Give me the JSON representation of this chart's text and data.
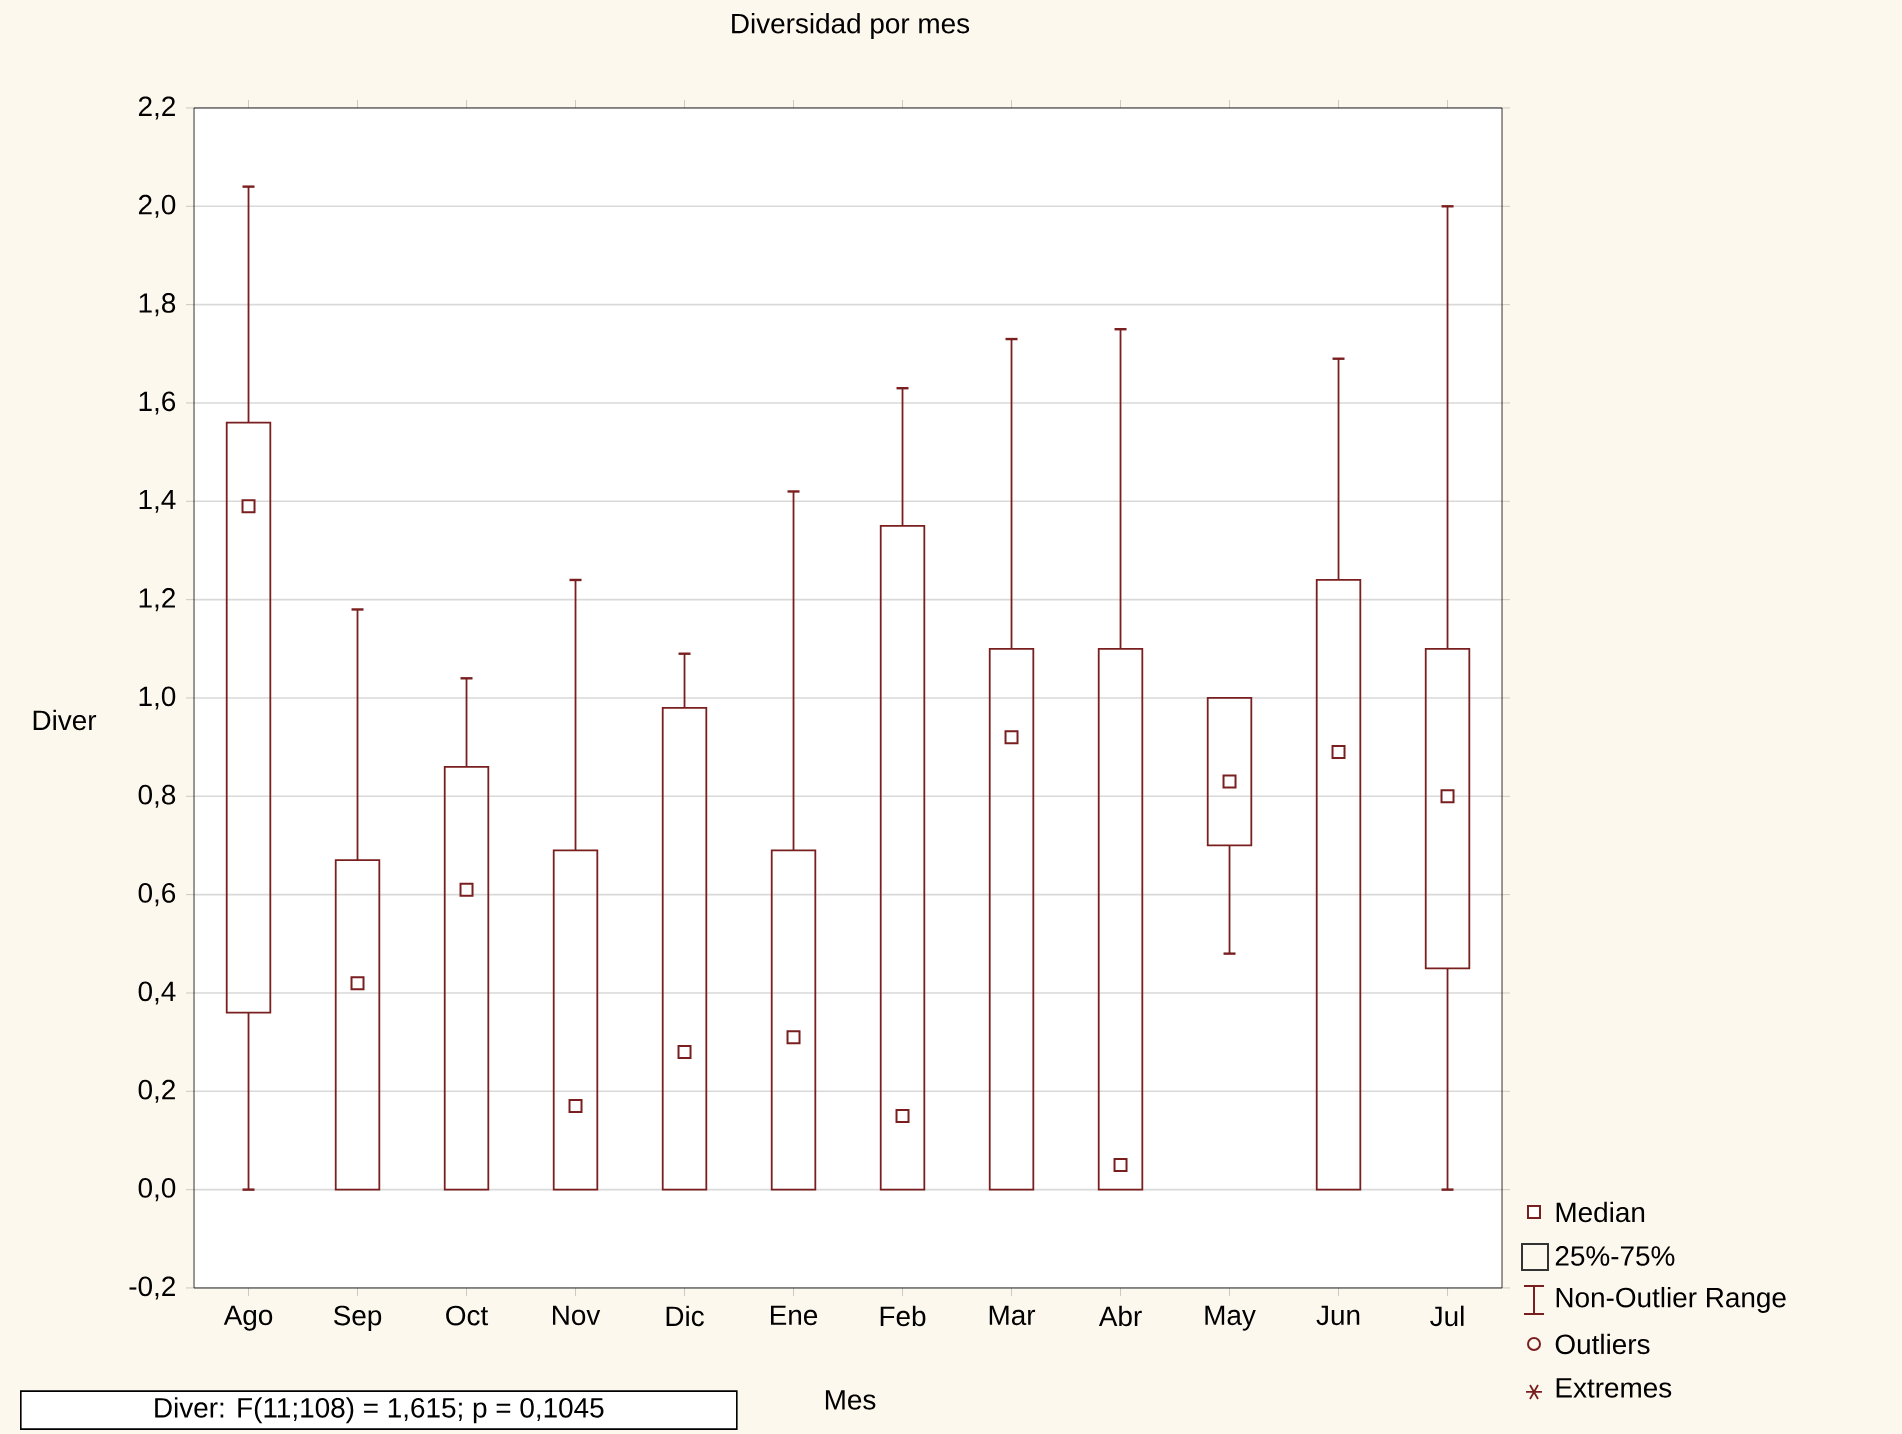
{
  "chart_data": {
    "type": "box",
    "title": "Diversidad por mes",
    "xlabel": "Mes",
    "ylabel": "Diver",
    "categories": [
      "Ago",
      "Sep",
      "Oct",
      "Nov",
      "Dic",
      "Ene",
      "Feb",
      "Mar",
      "Abr",
      "May",
      "Jun",
      "Jul"
    ],
    "color": "#7a1f1f",
    "boxes": [
      {
        "low": 0,
        "q1": 0.36,
        "median": 1.39,
        "q3": 1.56,
        "high": 2.04
      },
      {
        "low": 0,
        "q1": 0,
        "median": 0.42,
        "q3": 0.67,
        "high": 1.18
      },
      {
        "low": 0,
        "q1": 0,
        "median": 0.61,
        "q3": 0.86,
        "high": 1.04
      },
      {
        "low": 0,
        "q1": 0,
        "median": 0.17,
        "q3": 0.69,
        "high": 1.24
      },
      {
        "low": 0,
        "q1": 0,
        "median": 0.28,
        "q3": 0.98,
        "high": 1.09
      },
      {
        "low": 0,
        "q1": 0,
        "median": 0.31,
        "q3": 0.69,
        "high": 1.42
      },
      {
        "low": 0,
        "q1": 0,
        "median": 0.15,
        "q3": 1.35,
        "high": 1.63
      },
      {
        "low": 0,
        "q1": 0,
        "median": 0.92,
        "q3": 1.1,
        "high": 1.73
      },
      {
        "low": 0,
        "q1": 0,
        "median": 0.05,
        "q3": 1.1,
        "high": 1.75
      },
      {
        "low": 0.48,
        "q1": 0.7,
        "median": 0.83,
        "q3": 1.0,
        "high": 1.0
      },
      {
        "low": 0,
        "q1": 0,
        "median": 0.89,
        "q3": 1.24,
        "high": 1.69
      },
      {
        "low": 0,
        "q1": 0.45,
        "median": 0.8,
        "q3": 1.1,
        "high": 2.0
      }
    ],
    "ylim": [
      -0.2,
      2.2
    ],
    "yticks": [
      {
        "value": -0.2,
        "label": "-0,2"
      },
      {
        "value": 0,
        "label": "0,0"
      },
      {
        "value": 0.2,
        "label": "0,2"
      },
      {
        "value": 0.4,
        "label": "0,4"
      },
      {
        "value": 0.6,
        "label": "0,6"
      },
      {
        "value": 0.8,
        "label": "0,8"
      },
      {
        "value": 1.0,
        "label": "1,0"
      },
      {
        "value": 1.2,
        "label": "1,2"
      },
      {
        "value": 1.4,
        "label": "1,4"
      },
      {
        "value": 1.6,
        "label": "1,6"
      },
      {
        "value": 1.8,
        "label": "1,8"
      },
      {
        "value": 2.0,
        "label": "2,0"
      },
      {
        "value": 2.2,
        "label": "2,2"
      }
    ],
    "grid": "y",
    "annotations": [
      "Diver: F(11;108) = 1,615; p = 0,1045",
      "Median",
      "25%-75%",
      "Non-Outlier Range",
      "Outliers",
      "Extremes"
    ]
  }
}
